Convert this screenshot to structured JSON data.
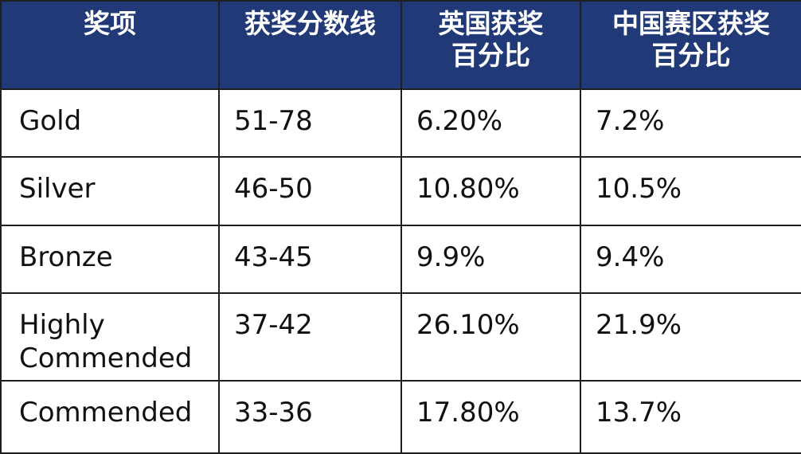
{
  "table": {
    "headers": [
      "奖项",
      "获奖分数线",
      "英国获奖\n百分比",
      "中国赛区获奖\n百分比"
    ],
    "rows": [
      [
        "Gold",
        "51-78",
        "6.20%",
        "7.2%"
      ],
      [
        "Silver",
        "46-50",
        "10.80%",
        "10.5%"
      ],
      [
        "Bronze",
        "43-45",
        "9.9%",
        "9.4%"
      ],
      [
        "Highly\nCommended",
        "37-42",
        "26.10%",
        "21.9%"
      ],
      [
        "Commended",
        "33-36",
        "17.80%",
        "13.7%"
      ]
    ],
    "colors": {
      "header_bg": "#213a77",
      "header_text": "#ffffff",
      "border": "#1f1f1f",
      "body_text": "#111111"
    }
  }
}
